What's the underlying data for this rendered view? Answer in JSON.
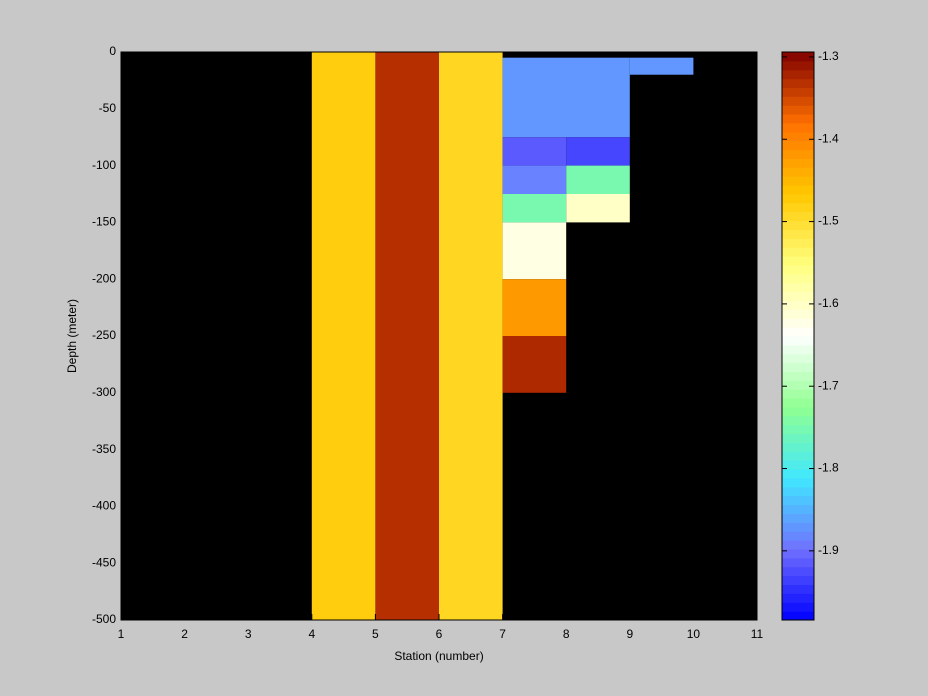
{
  "chart_data": {
    "type": "heatmap",
    "xlabel": "Station (number)",
    "ylabel": "Depth (meter)",
    "xlim": [
      1,
      11
    ],
    "xticks": [
      1,
      2,
      3,
      4,
      5,
      6,
      7,
      8,
      9,
      10,
      11
    ],
    "ylim": [
      -500,
      0
    ],
    "yticks": [
      0,
      -50,
      -100,
      -150,
      -200,
      -250,
      -300,
      -350,
      -400,
      -450,
      -500
    ],
    "clim": [
      -1.984,
      -1.294
    ],
    "cticks": [
      -1.3,
      -1.4,
      -1.5,
      -1.6,
      -1.7,
      -1.8,
      -1.9
    ],
    "background": "#000000",
    "colormap": [
      "#0000ff",
      "#7070ff",
      "#40e8ff",
      "#90ff90",
      "#ffffff",
      "#ffff80",
      "#ffc800",
      "#ff7000",
      "#800000"
    ],
    "cells": [
      {
        "x": [
          4,
          5
        ],
        "y": [
          -500,
          0
        ],
        "value": -1.475
      },
      {
        "x": [
          5,
          6
        ],
        "y": [
          -500,
          0
        ],
        "value": -1.33
      },
      {
        "x": [
          6,
          7
        ],
        "y": [
          -500,
          0
        ],
        "value": -1.49
      },
      {
        "x": [
          7,
          9
        ],
        "y": [
          -75,
          -5
        ],
        "value": -1.87
      },
      {
        "x": [
          9,
          10
        ],
        "y": [
          -20,
          -5
        ],
        "value": -1.87
      },
      {
        "x": [
          7,
          8
        ],
        "y": [
          -100,
          -75
        ],
        "value": -1.915
      },
      {
        "x": [
          8,
          9
        ],
        "y": [
          -100,
          -75
        ],
        "value": -1.93
      },
      {
        "x": [
          7,
          8
        ],
        "y": [
          -125,
          -100
        ],
        "value": -1.885
      },
      {
        "x": [
          8,
          9
        ],
        "y": [
          -125,
          -100
        ],
        "value": -1.75
      },
      {
        "x": [
          7,
          8
        ],
        "y": [
          -150,
          -125
        ],
        "value": -1.75
      },
      {
        "x": [
          8,
          9
        ],
        "y": [
          -150,
          -125
        ],
        "value": -1.6
      },
      {
        "x": [
          7,
          8
        ],
        "y": [
          -200,
          -150
        ],
        "value": -1.62
      },
      {
        "x": [
          7,
          8
        ],
        "y": [
          -250,
          -200
        ],
        "value": -1.42
      },
      {
        "x": [
          7,
          8
        ],
        "y": [
          -300,
          -250
        ],
        "value": -1.325
      }
    ]
  }
}
